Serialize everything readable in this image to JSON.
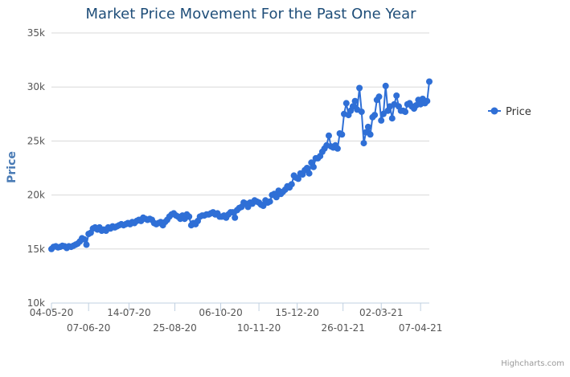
{
  "chart_data": {
    "type": "line",
    "title": "Market Price Movement For the Past One Year",
    "ylabel": "Price",
    "ylim": [
      10000,
      35000
    ],
    "y_ticks": [
      10000,
      15000,
      20000,
      25000,
      30000,
      35000
    ],
    "y_tick_labels": [
      "10k",
      "15k",
      "20k",
      "25k",
      "30k",
      "35k"
    ],
    "grid": true,
    "legend_position": "right",
    "x_range": [
      0,
      339
    ],
    "x_ticks": [
      {
        "x": 0,
        "label": "04-05-20"
      },
      {
        "x": 34,
        "label": "07-06-20"
      },
      {
        "x": 71,
        "label": "14-07-20"
      },
      {
        "x": 113,
        "label": "25-08-20"
      },
      {
        "x": 155,
        "label": "06-10-20"
      },
      {
        "x": 190,
        "label": "10-11-20"
      },
      {
        "x": 225,
        "label": "15-12-20"
      },
      {
        "x": 267,
        "label": "26-01-21"
      },
      {
        "x": 302,
        "label": "02-03-21"
      },
      {
        "x": 338,
        "label": "07-04-21"
      }
    ],
    "series": [
      {
        "name": "Price",
        "color": "#2f6fd6",
        "points": [
          [
            0,
            15000
          ],
          [
            2,
            15200
          ],
          [
            4,
            15250
          ],
          [
            6,
            15150
          ],
          [
            8,
            15200
          ],
          [
            10,
            15300
          ],
          [
            12,
            15250
          ],
          [
            14,
            15100
          ],
          [
            16,
            15250
          ],
          [
            18,
            15200
          ],
          [
            20,
            15300
          ],
          [
            22,
            15400
          ],
          [
            24,
            15500
          ],
          [
            26,
            15700
          ],
          [
            28,
            16000
          ],
          [
            30,
            15900
          ],
          [
            32,
            15400
          ],
          [
            34,
            16400
          ],
          [
            36,
            16500
          ],
          [
            38,
            16900
          ],
          [
            40,
            17000
          ],
          [
            42,
            16800
          ],
          [
            44,
            17000
          ],
          [
            46,
            16700
          ],
          [
            48,
            16800
          ],
          [
            50,
            16700
          ],
          [
            52,
            17000
          ],
          [
            54,
            16900
          ],
          [
            56,
            17100
          ],
          [
            58,
            17000
          ],
          [
            60,
            17100
          ],
          [
            62,
            17200
          ],
          [
            64,
            17300
          ],
          [
            66,
            17200
          ],
          [
            68,
            17300
          ],
          [
            70,
            17400
          ],
          [
            72,
            17300
          ],
          [
            74,
            17500
          ],
          [
            76,
            17400
          ],
          [
            78,
            17600
          ],
          [
            80,
            17700
          ],
          [
            82,
            17600
          ],
          [
            84,
            17900
          ],
          [
            86,
            17800
          ],
          [
            88,
            17700
          ],
          [
            90,
            17800
          ],
          [
            92,
            17700
          ],
          [
            94,
            17400
          ],
          [
            96,
            17300
          ],
          [
            98,
            17400
          ],
          [
            100,
            17500
          ],
          [
            102,
            17200
          ],
          [
            104,
            17500
          ],
          [
            106,
            17700
          ],
          [
            108,
            18000
          ],
          [
            110,
            18200
          ],
          [
            112,
            18300
          ],
          [
            114,
            18100
          ],
          [
            116,
            18000
          ],
          [
            118,
            17800
          ],
          [
            120,
            18100
          ],
          [
            122,
            17800
          ],
          [
            124,
            18200
          ],
          [
            126,
            18000
          ],
          [
            128,
            17200
          ],
          [
            130,
            17400
          ],
          [
            132,
            17300
          ],
          [
            134,
            17600
          ],
          [
            136,
            18000
          ],
          [
            138,
            18100
          ],
          [
            140,
            18100
          ],
          [
            142,
            18200
          ],
          [
            144,
            18200
          ],
          [
            146,
            18300
          ],
          [
            148,
            18400
          ],
          [
            150,
            18200
          ],
          [
            152,
            18300
          ],
          [
            154,
            18000
          ],
          [
            156,
            18000
          ],
          [
            158,
            18100
          ],
          [
            160,
            17900
          ],
          [
            162,
            18200
          ],
          [
            164,
            18400
          ],
          [
            166,
            18400
          ],
          [
            168,
            17900
          ],
          [
            170,
            18600
          ],
          [
            172,
            18800
          ],
          [
            174,
            18900
          ],
          [
            176,
            19300
          ],
          [
            178,
            19200
          ],
          [
            180,
            18900
          ],
          [
            182,
            19300
          ],
          [
            184,
            19200
          ],
          [
            186,
            19500
          ],
          [
            188,
            19400
          ],
          [
            190,
            19300
          ],
          [
            192,
            19100
          ],
          [
            194,
            19000
          ],
          [
            196,
            19500
          ],
          [
            198,
            19300
          ],
          [
            200,
            19400
          ],
          [
            202,
            20000
          ],
          [
            204,
            20100
          ],
          [
            206,
            19800
          ],
          [
            208,
            20400
          ],
          [
            210,
            20100
          ],
          [
            212,
            20300
          ],
          [
            214,
            20500
          ],
          [
            216,
            20800
          ],
          [
            218,
            20700
          ],
          [
            220,
            21000
          ],
          [
            222,
            21800
          ],
          [
            224,
            21600
          ],
          [
            226,
            21500
          ],
          [
            228,
            22000
          ],
          [
            230,
            21900
          ],
          [
            232,
            22300
          ],
          [
            234,
            22500
          ],
          [
            236,
            22000
          ],
          [
            238,
            23000
          ],
          [
            240,
            22600
          ],
          [
            242,
            23400
          ],
          [
            244,
            23400
          ],
          [
            246,
            23600
          ],
          [
            248,
            24000
          ],
          [
            250,
            24300
          ],
          [
            252,
            24600
          ],
          [
            254,
            25500
          ],
          [
            256,
            24500
          ],
          [
            258,
            24400
          ],
          [
            260,
            24600
          ],
          [
            262,
            24300
          ],
          [
            264,
            25700
          ],
          [
            266,
            25600
          ],
          [
            268,
            27500
          ],
          [
            270,
            28500
          ],
          [
            272,
            27400
          ],
          [
            274,
            27800
          ],
          [
            276,
            28200
          ],
          [
            278,
            28700
          ],
          [
            280,
            27900
          ],
          [
            282,
            29900
          ],
          [
            284,
            27700
          ],
          [
            286,
            24800
          ],
          [
            288,
            25800
          ],
          [
            290,
            26300
          ],
          [
            292,
            25600
          ],
          [
            294,
            27200
          ],
          [
            296,
            27400
          ],
          [
            298,
            28800
          ],
          [
            300,
            29100
          ],
          [
            302,
            26900
          ],
          [
            304,
            27500
          ],
          [
            306,
            30100
          ],
          [
            308,
            27800
          ],
          [
            310,
            28200
          ],
          [
            312,
            27100
          ],
          [
            314,
            28400
          ],
          [
            316,
            29200
          ],
          [
            318,
            28200
          ],
          [
            320,
            27800
          ],
          [
            322,
            27800
          ],
          [
            324,
            27700
          ],
          [
            326,
            28400
          ],
          [
            328,
            28500
          ],
          [
            330,
            28200
          ],
          [
            332,
            28000
          ],
          [
            334,
            28300
          ],
          [
            336,
            28800
          ],
          [
            338,
            28400
          ],
          [
            340,
            28900
          ],
          [
            342,
            28500
          ],
          [
            344,
            28700
          ],
          [
            346,
            30500
          ]
        ]
      }
    ],
    "credits": "Highcharts.com"
  }
}
